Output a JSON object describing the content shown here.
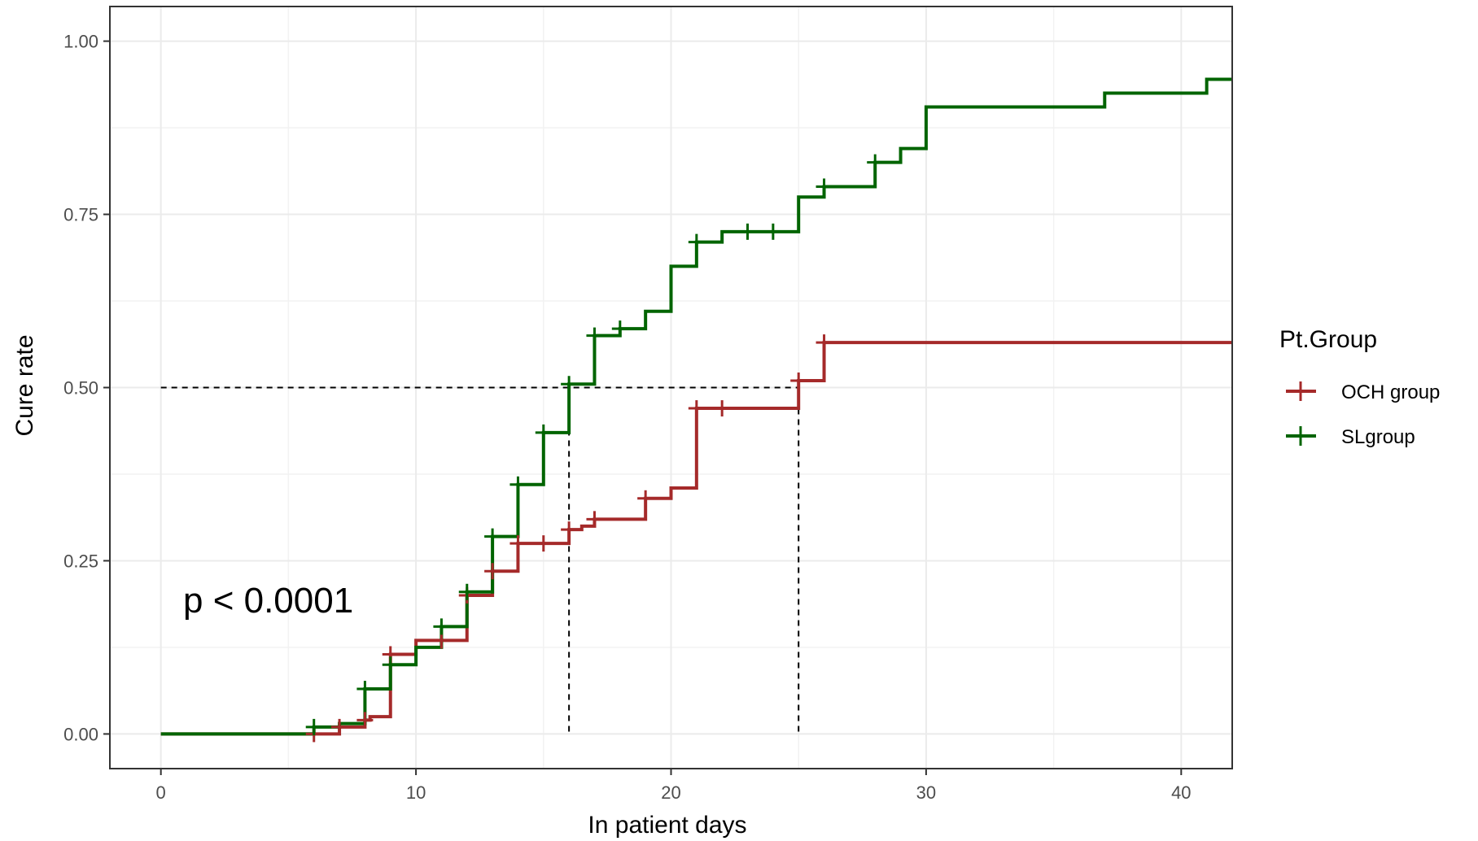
{
  "chart_data": {
    "type": "line",
    "step": true,
    "xlabel": "In patient days",
    "ylabel": "Cure rate",
    "xlim": [
      -2,
      42
    ],
    "ylim": [
      -0.05,
      1.05
    ],
    "x_ticks": [
      0,
      10,
      20,
      30,
      40
    ],
    "x_tick_labels": [
      "0",
      "10",
      "20",
      "30",
      "40"
    ],
    "y_ticks": [
      0,
      0.25,
      0.5,
      0.75,
      1.0
    ],
    "y_tick_labels": [
      "0.00",
      "0.25",
      "0.50",
      "0.75",
      "1.00"
    ],
    "grid": true,
    "legend": {
      "title": "Pt.Group",
      "position": "right"
    },
    "annotation": "p < 0.0001",
    "median_line_y": 0.5,
    "median_x": [
      16,
      25
    ],
    "series": [
      {
        "name": "OCH group",
        "color": "#a52a2a",
        "steps": [
          [
            0,
            0
          ],
          [
            6,
            0
          ],
          [
            7,
            0.01
          ],
          [
            8,
            0.02
          ],
          [
            8.2,
            0.025
          ],
          [
            9,
            0.115
          ],
          [
            10,
            0.135
          ],
          [
            12,
            0.2
          ],
          [
            13,
            0.235
          ],
          [
            14,
            0.275
          ],
          [
            16,
            0.295
          ],
          [
            16.5,
            0.3
          ],
          [
            17,
            0.31
          ],
          [
            19,
            0.34
          ],
          [
            20,
            0.355
          ],
          [
            21,
            0.47
          ],
          [
            25,
            0.51
          ],
          [
            26,
            0.565
          ],
          [
            42,
            0.565
          ]
        ],
        "censor_x": [
          6,
          7,
          8,
          9,
          11,
          12,
          13,
          14,
          15,
          16,
          17,
          19,
          21,
          22,
          25,
          26
        ]
      },
      {
        "name": "SLgroup",
        "color": "#006400",
        "steps": [
          [
            0,
            0
          ],
          [
            6,
            0.01
          ],
          [
            7,
            0.015
          ],
          [
            8,
            0.065
          ],
          [
            9,
            0.1
          ],
          [
            10,
            0.125
          ],
          [
            11,
            0.155
          ],
          [
            12,
            0.205
          ],
          [
            13,
            0.285
          ],
          [
            14,
            0.36
          ],
          [
            15,
            0.435
          ],
          [
            16,
            0.505
          ],
          [
            17,
            0.575
          ],
          [
            18,
            0.585
          ],
          [
            19,
            0.61
          ],
          [
            20,
            0.675
          ],
          [
            21,
            0.71
          ],
          [
            22,
            0.725
          ],
          [
            25,
            0.775
          ],
          [
            26,
            0.79
          ],
          [
            28,
            0.825
          ],
          [
            29,
            0.845
          ],
          [
            30,
            0.905
          ],
          [
            37,
            0.925
          ],
          [
            41,
            0.945
          ],
          [
            42,
            0.945
          ]
        ],
        "censor_x": [
          6,
          8,
          9,
          11,
          12,
          13,
          14,
          15,
          16,
          17,
          18,
          21,
          23,
          24,
          26,
          28
        ]
      }
    ]
  }
}
